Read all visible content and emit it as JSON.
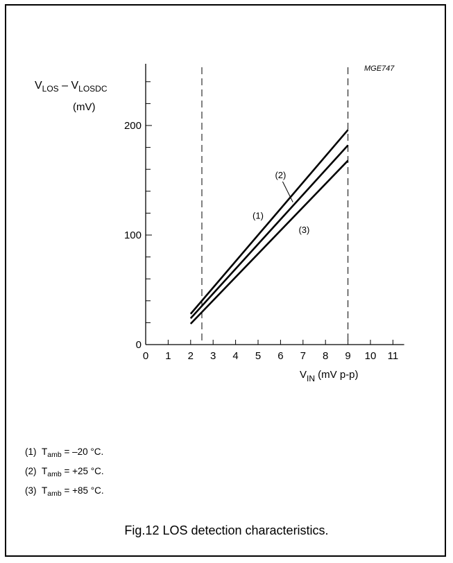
{
  "chart_data": {
    "type": "line",
    "ref_code": "MGE747",
    "ylabel": {
      "main": "V",
      "sub1": "LOS",
      "mid": " – V",
      "sub2": "LOSDC"
    },
    "yunit": "(mV)",
    "xlabel": {
      "main": "V",
      "sub": "IN",
      "rest": " (mV p-p)"
    },
    "xlim": [
      0,
      11.5
    ],
    "ylim": [
      0,
      260
    ],
    "x_ticks": [
      0,
      1,
      2,
      3,
      4,
      5,
      6,
      7,
      8,
      9,
      10,
      11
    ],
    "x_tick_labels": [
      "0",
      "1",
      "2",
      "3",
      "4",
      "5",
      "6",
      "7",
      "8",
      "9",
      "10",
      "11"
    ],
    "y_ticks": [
      0,
      100,
      200
    ],
    "y_tick_labels": [
      "0",
      "100",
      "200"
    ],
    "y_minor_ticks": [
      20,
      40,
      60,
      80,
      120,
      140,
      160,
      180,
      220,
      240
    ],
    "x_axis_extent": 11.5,
    "dashed_lines_x": [
      2.5,
      9
    ],
    "grid": false,
    "series": [
      {
        "name": "(1)",
        "x": [
          2,
          9
        ],
        "y": [
          28,
          196
        ],
        "label_at": [
          5,
          115
        ]
      },
      {
        "name": "(2)",
        "x": [
          2,
          9
        ],
        "y": [
          24,
          182
        ],
        "label_at": [
          6,
          152
        ]
      },
      {
        "name": "(3)",
        "x": [
          2,
          9
        ],
        "y": [
          19,
          168
        ],
        "label_at": [
          7.05,
          102
        ]
      }
    ],
    "notes": [
      {
        "num": "(1)",
        "t": "T",
        "sub": "amb",
        "val": " = –20 °C."
      },
      {
        "num": "(2)",
        "t": "T",
        "sub": "amb",
        "val": " = +25 °C."
      },
      {
        "num": "(3)",
        "t": "T",
        "sub": "amb",
        "val": " = +85 °C."
      }
    ],
    "caption": "Fig.12  LOS detection characteristics."
  }
}
